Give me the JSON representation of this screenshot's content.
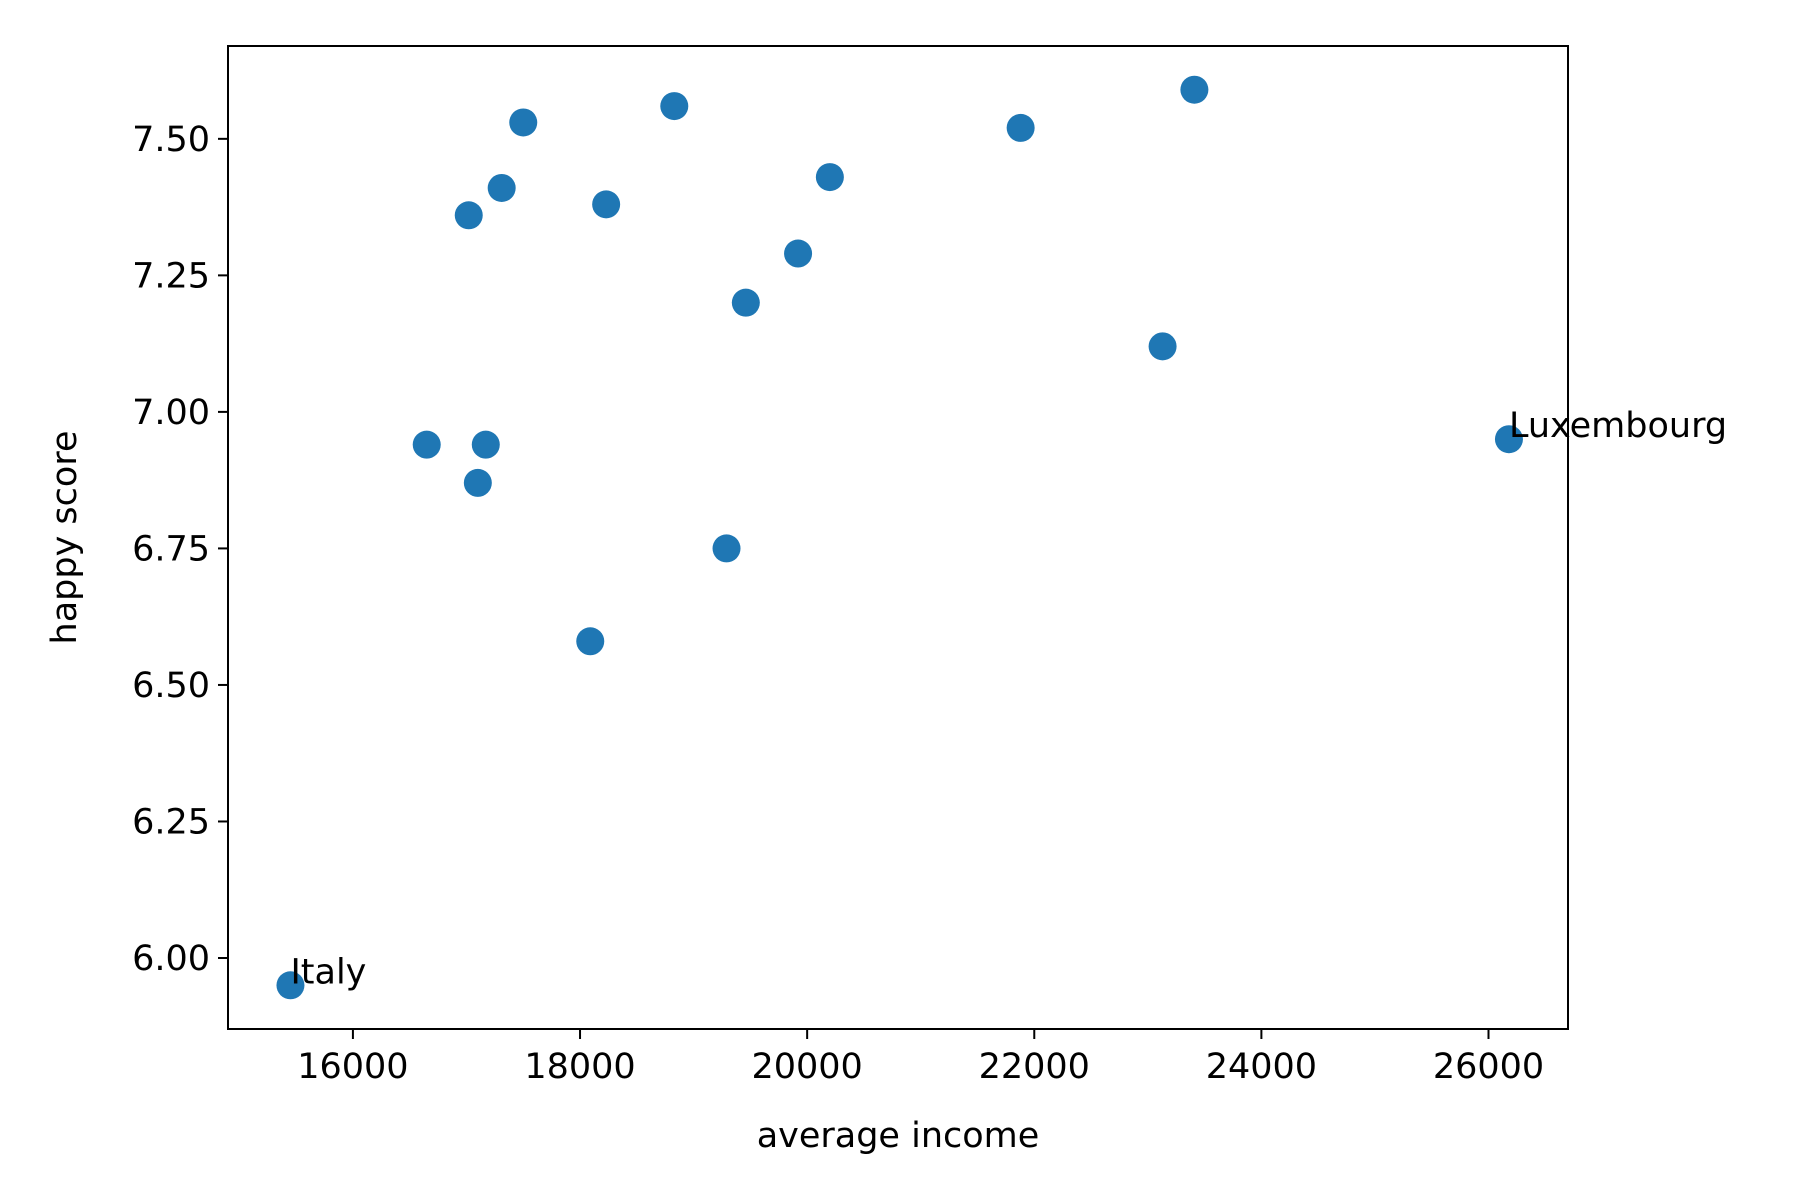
{
  "chart_data": {
    "type": "scatter",
    "xlabel": "average income",
    "ylabel": "happy score",
    "xlim": [
      14900,
      26700
    ],
    "ylim": [
      5.87,
      7.67
    ],
    "xticks": [
      16000,
      18000,
      20000,
      22000,
      24000,
      26000
    ],
    "xtick_labels": [
      "16000",
      "18000",
      "20000",
      "22000",
      "24000",
      "26000"
    ],
    "yticks": [
      6.0,
      6.25,
      6.5,
      6.75,
      7.0,
      7.25,
      7.5
    ],
    "ytick_labels": [
      "6.00",
      "6.25",
      "6.50",
      "6.75",
      "7.00",
      "7.25",
      "7.50"
    ],
    "grid": false,
    "marker_color": "#1f77b4",
    "points": [
      {
        "x": 15450,
        "y": 5.95,
        "label": "Italy"
      },
      {
        "x": 16650,
        "y": 6.94
      },
      {
        "x": 17020,
        "y": 7.36
      },
      {
        "x": 17100,
        "y": 6.87
      },
      {
        "x": 17170,
        "y": 6.94
      },
      {
        "x": 17310,
        "y": 7.41
      },
      {
        "x": 17500,
        "y": 7.53
      },
      {
        "x": 18090,
        "y": 6.58
      },
      {
        "x": 18230,
        "y": 7.38
      },
      {
        "x": 18830,
        "y": 7.56
      },
      {
        "x": 19290,
        "y": 6.75
      },
      {
        "x": 19460,
        "y": 7.2
      },
      {
        "x": 19920,
        "y": 7.29
      },
      {
        "x": 20200,
        "y": 7.43
      },
      {
        "x": 21880,
        "y": 7.52
      },
      {
        "x": 23130,
        "y": 7.12
      },
      {
        "x": 23410,
        "y": 7.59
      },
      {
        "x": 26180,
        "y": 6.95,
        "label": "Luxembourg"
      }
    ]
  }
}
